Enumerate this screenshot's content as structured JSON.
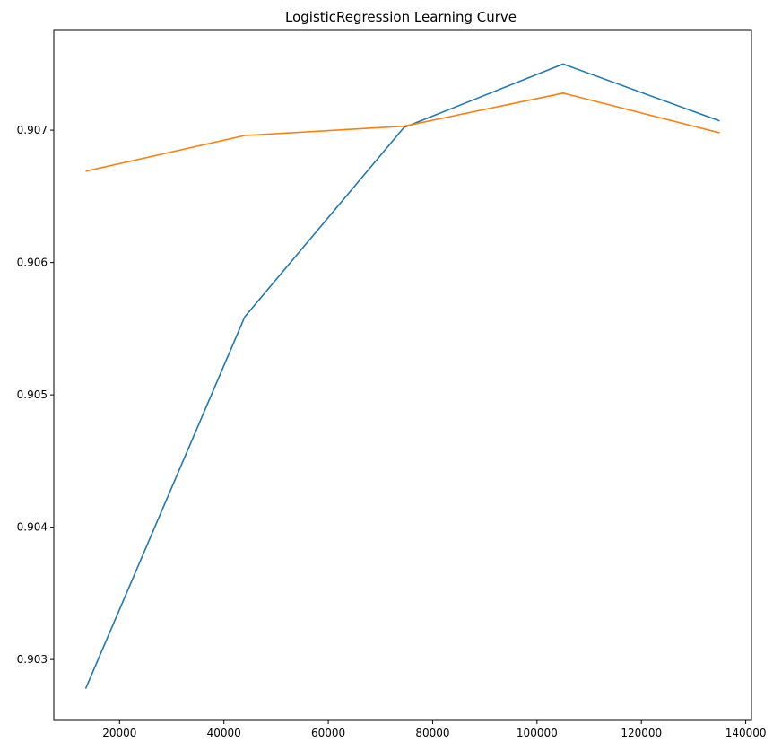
{
  "chart_data": {
    "type": "line",
    "title": "LogisticRegression Learning Curve",
    "xlabel": "",
    "ylabel": "",
    "x": [
      13500,
      44000,
      74500,
      105000,
      135000
    ],
    "series": [
      {
        "values": [
          0.90278,
          0.90559,
          0.90702,
          0.9075,
          0.90707
        ],
        "color": "#1f77b4"
      },
      {
        "values": [
          0.90669,
          0.90696,
          0.90703,
          0.90728,
          0.90698
        ],
        "color": "#ff7f0e"
      }
    ],
    "xlim": [
      7400,
      141100
    ],
    "ylim": [
      0.90254,
      0.90776
    ],
    "xticks": [
      20000,
      40000,
      60000,
      80000,
      100000,
      120000,
      140000
    ],
    "yticks": [
      0.903,
      0.904,
      0.905,
      0.906,
      0.907
    ],
    "xtick_labels": [
      "20000",
      "40000",
      "60000",
      "80000",
      "100000",
      "120000",
      "140000"
    ],
    "ytick_labels": [
      "0.903",
      "0.904",
      "0.905",
      "0.906",
      "0.907"
    ],
    "grid": false,
    "legend": false
  }
}
